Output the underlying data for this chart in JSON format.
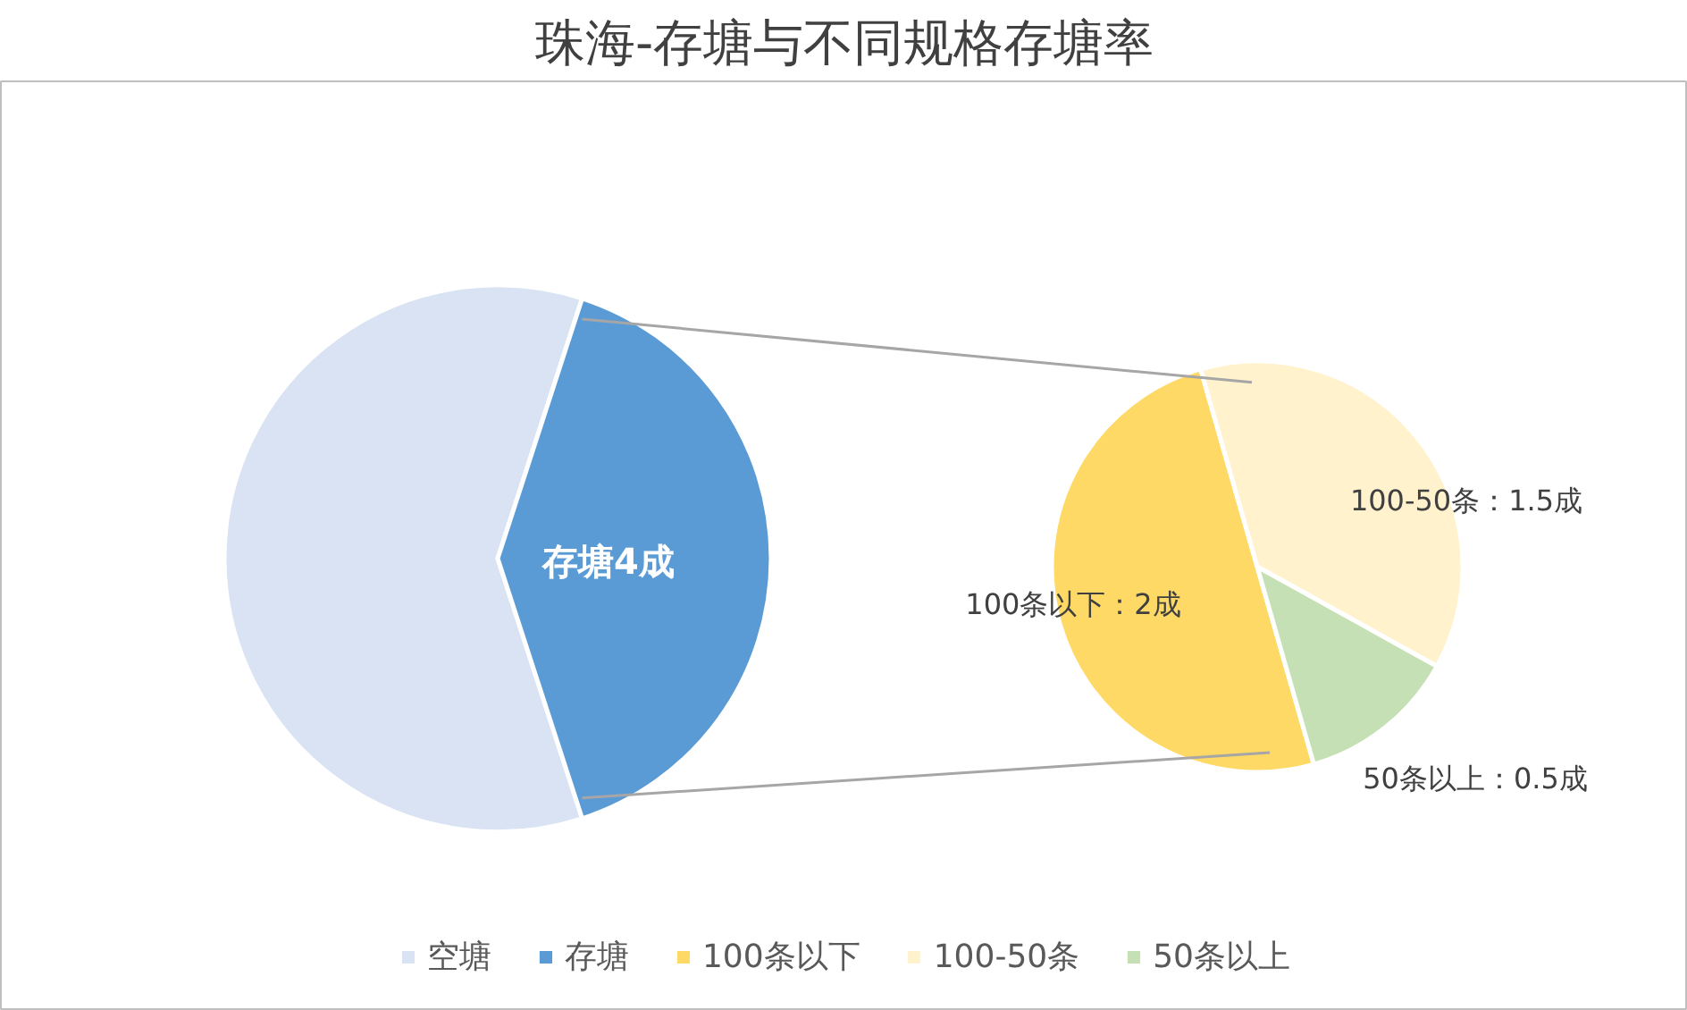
{
  "chart_data": [
    {
      "type": "pie",
      "title": "珠海-存塘与不同规格存塘率",
      "categories": [
        "空塘",
        "存塘"
      ],
      "values": [
        6,
        4
      ],
      "colors": [
        "#dae3f3",
        "#5b9bd5"
      ],
      "value_labels": [
        null,
        "存塘4成"
      ],
      "legend": "bottom"
    },
    {
      "type": "pie",
      "categories": [
        "100条以下",
        "100-50条",
        "50条以上"
      ],
      "values": [
        2,
        1.5,
        0.5
      ],
      "colors": [
        "#ffd966",
        "#fff2cc",
        "#c5e0b4"
      ],
      "value_labels": [
        "100条以下：2成",
        "100-50条：1.5成",
        "50条以上：0.5成"
      ],
      "legend": "bottom"
    }
  ]
}
